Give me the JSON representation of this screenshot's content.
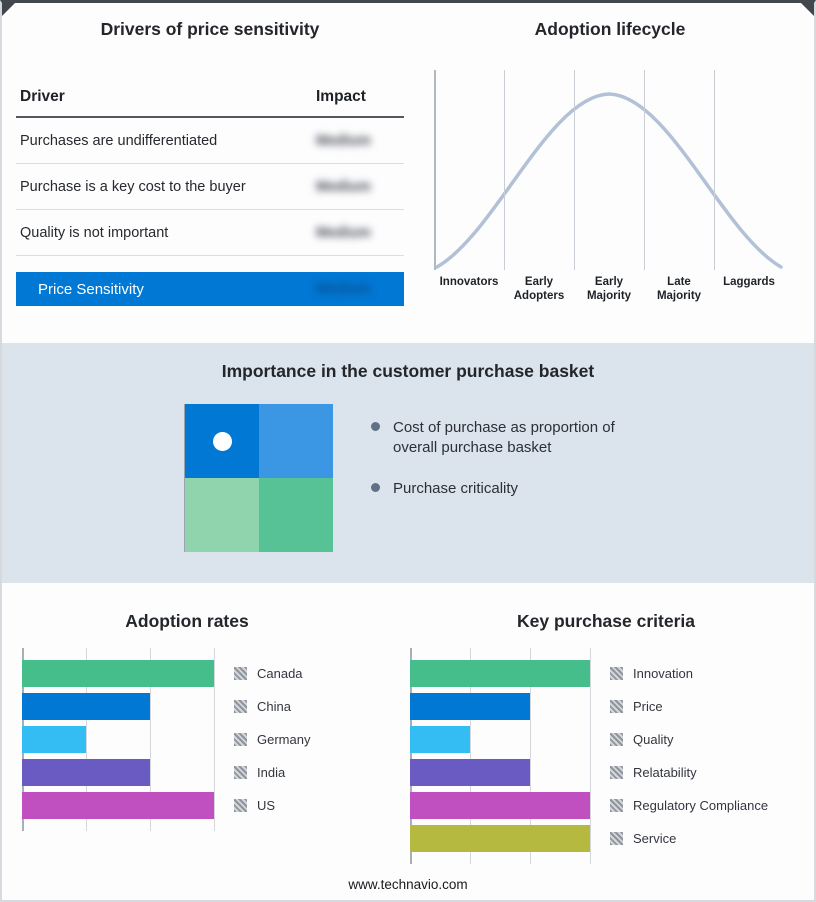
{
  "page": {
    "footer": "www.technavio.com",
    "band_bg": "#DBE3EC"
  },
  "price_sensitivity": {
    "title": "Drivers of price sensitivity",
    "columns": {
      "driver": "Driver",
      "impact": "Impact"
    },
    "impact_values_blurred": true,
    "rows": [
      {
        "driver": "Purchases are undifferentiated",
        "impact": "Medium"
      },
      {
        "driver": "Purchase is a key cost to the buyer",
        "impact": "Medium"
      },
      {
        "driver": "Quality is not important",
        "impact": "Medium"
      }
    ],
    "summary_row": {
      "label": "Price Sensitivity",
      "impact": "Medium",
      "bg": "#0078D4"
    }
  },
  "purchase_basket": {
    "title": "Importance in the customer purchase basket",
    "bullets": [
      "Cost of purchase as proportion of overall purchase basket",
      "Purchase criticality"
    ],
    "quadrant_colors": [
      "#0078D4",
      "#3B97E4",
      "#8FD4AD",
      "#57C295"
    ]
  },
  "chart_data": [
    {
      "type": "bar",
      "orientation": "horizontal",
      "title": "Adoption rates",
      "categories": [
        "Canada",
        "China",
        "Germany",
        "India",
        "US"
      ],
      "values": [
        96,
        64,
        32,
        64,
        96
      ],
      "values_unit": "relative_percent_of_axis",
      "colors": [
        "#45BE8C",
        "#0078D4",
        "#33BDF2",
        "#6A5BC2",
        "#C050C0"
      ],
      "xlim": [
        0,
        100
      ],
      "grid": true,
      "gridlines": [
        0,
        32,
        64,
        96
      ],
      "legend_position": "right",
      "legend_swatch_style": "gray-hatched"
    },
    {
      "type": "bar",
      "orientation": "horizontal",
      "title": "Key purchase criteria",
      "categories": [
        "Innovation",
        "Price",
        "Quality",
        "Relatability",
        "Regulatory Compliance",
        "Service"
      ],
      "values": [
        96,
        64,
        32,
        64,
        96,
        96
      ],
      "values_unit": "relative_percent_of_axis",
      "colors": [
        "#45BE8C",
        "#0078D4",
        "#33BDF2",
        "#6A5BC2",
        "#C050C0",
        "#B6B940"
      ],
      "xlim": [
        0,
        100
      ],
      "grid": true,
      "gridlines": [
        0,
        32,
        64,
        96
      ],
      "legend_position": "right",
      "legend_swatch_style": "gray-hatched"
    },
    {
      "type": "line",
      "title": "Adoption lifecycle",
      "categories": [
        "Innovators",
        "Early Adopters",
        "Early Majority",
        "Late Majority",
        "Laggards"
      ],
      "curve": "bell",
      "peak_category": "Early Majority",
      "color": "#B2C1D6"
    }
  ]
}
